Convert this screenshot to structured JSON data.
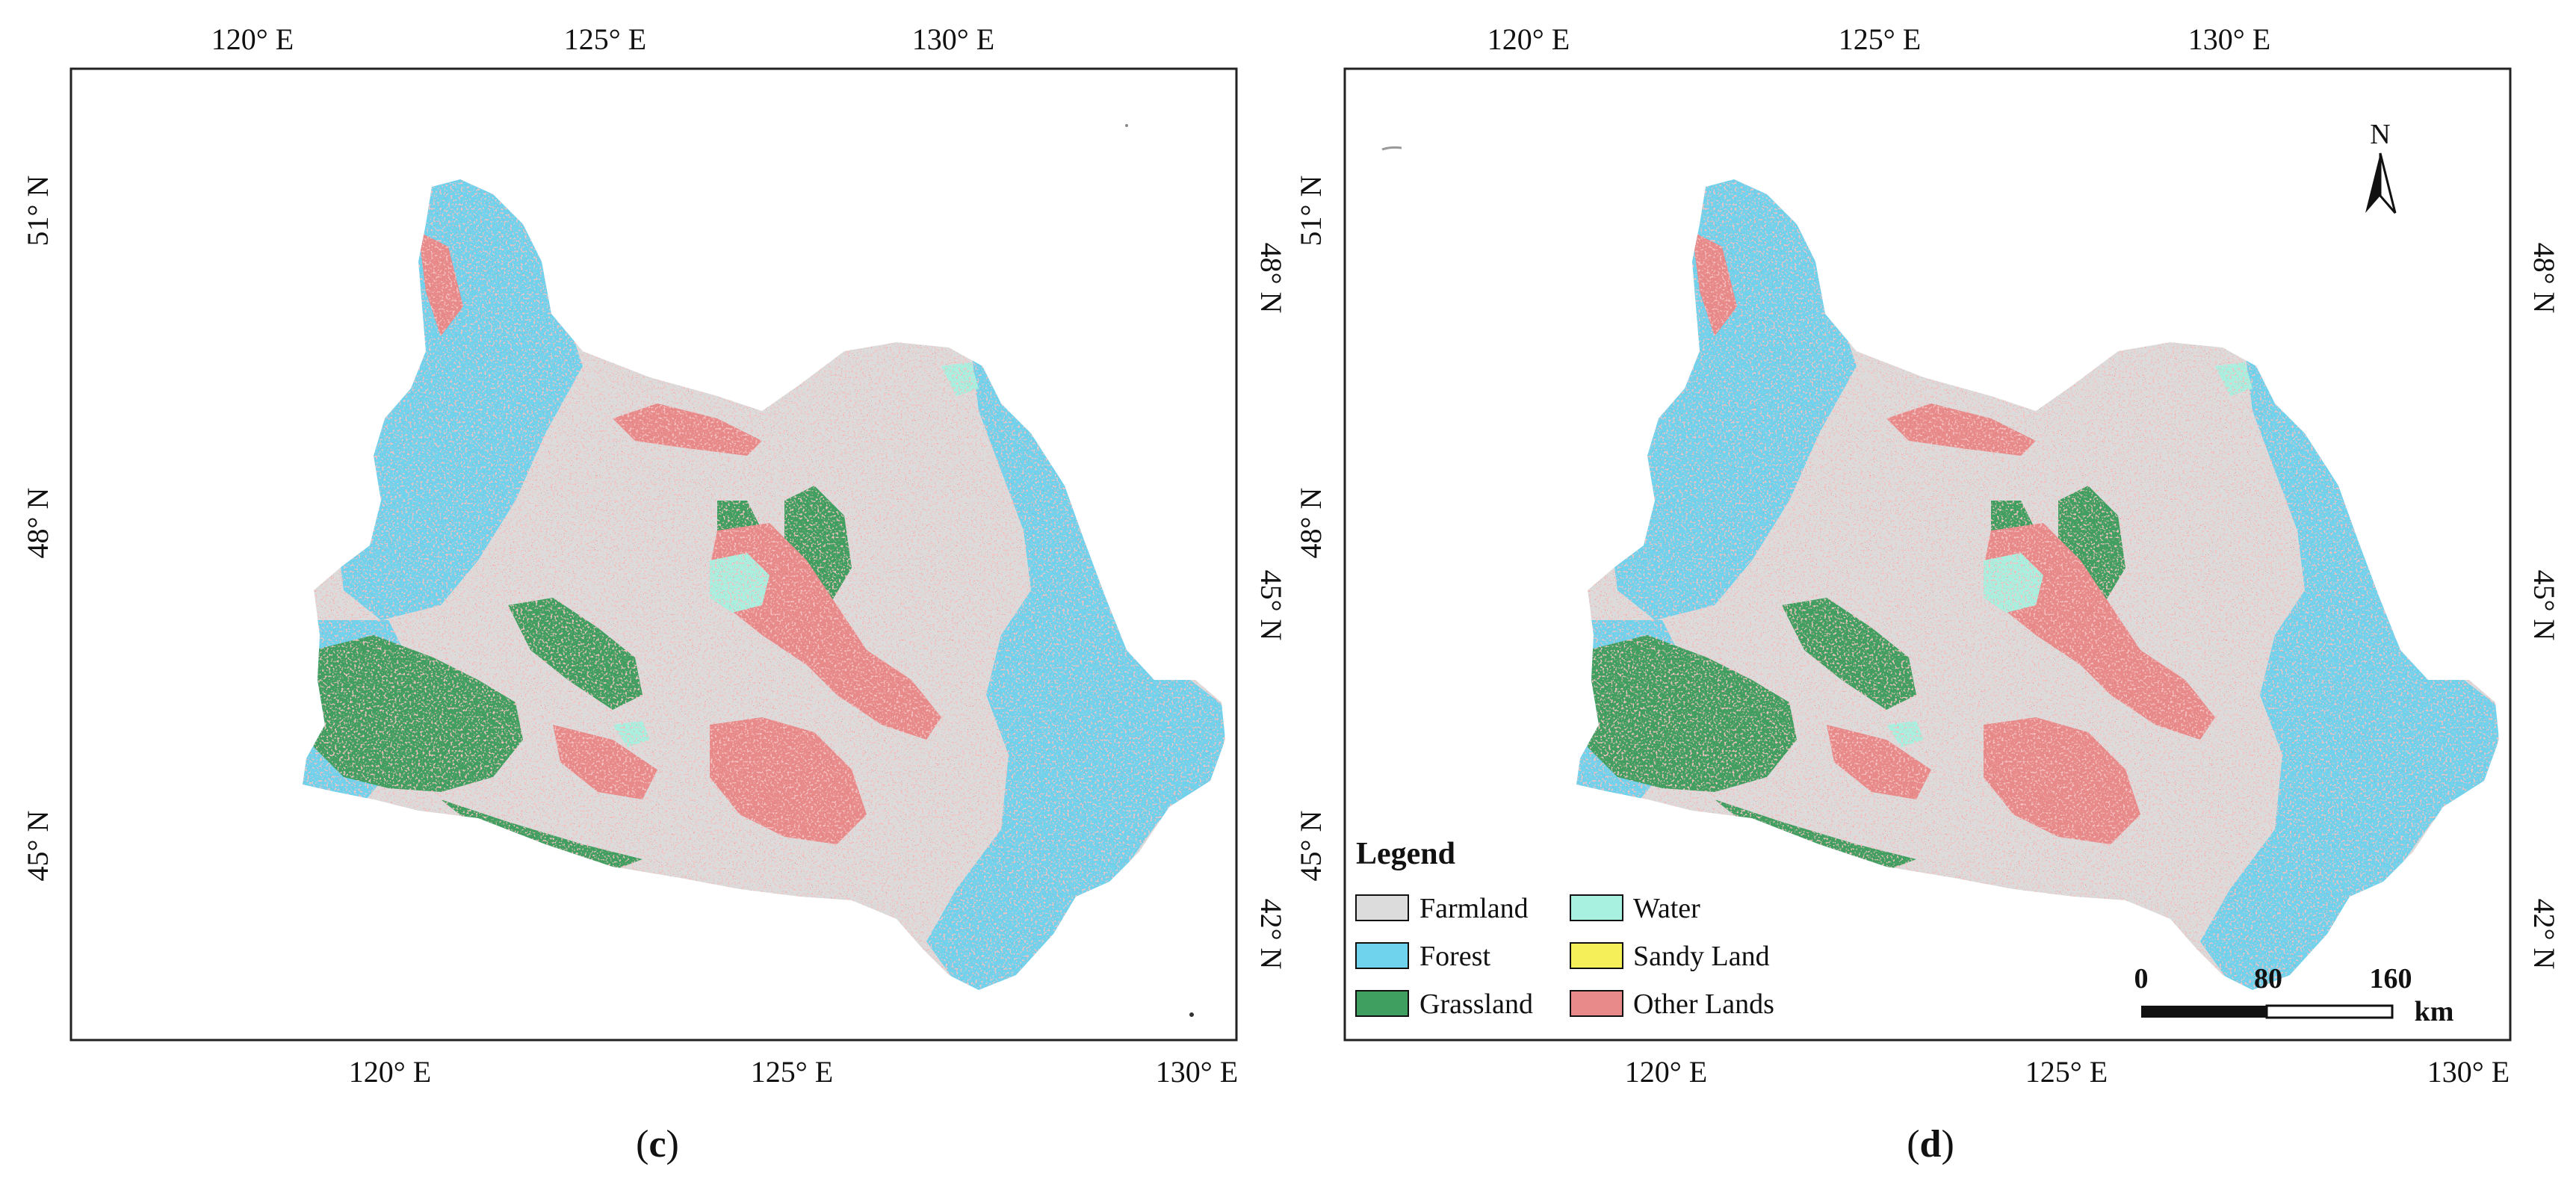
{
  "panels": [
    {
      "id": "c",
      "label_open": "(",
      "label_letter": "c",
      "label_close": ")",
      "top_ticks": [
        "120° E",
        "125° E",
        "130° E"
      ],
      "bottom_ticks": [
        "120° E",
        "125° E",
        "130° E"
      ],
      "left_ticks": [
        "51° N",
        "48° N",
        "45° N"
      ],
      "right_ticks": [
        "48° N",
        "45° N",
        "42° N"
      ]
    },
    {
      "id": "d",
      "label_open": "(",
      "label_letter": "d",
      "label_close": ")",
      "top_ticks": [
        "120° E",
        "125° E",
        "130° E"
      ],
      "bottom_ticks": [
        "120° E",
        "125° E",
        "130° E"
      ],
      "left_ticks": [
        "51° N",
        "48° N",
        "45° N"
      ],
      "right_ticks": [
        "48° N",
        "45° N",
        "42° N"
      ]
    }
  ],
  "legend": {
    "title": "Legend",
    "items": [
      {
        "label": "Farmland",
        "color": "#dcdcdc"
      },
      {
        "label": "Water",
        "color": "#a8f0e0"
      },
      {
        "label": "Forest",
        "color": "#6fd3ee"
      },
      {
        "label": "Sandy Land",
        "color": "#f5f05a"
      },
      {
        "label": "Grassland",
        "color": "#3f9f60"
      },
      {
        "label": "Other Lands",
        "color": "#e88a8a"
      }
    ]
  },
  "scale_bar": {
    "ticks": [
      "0",
      "80",
      "160"
    ],
    "unit": "km"
  },
  "north_arrow": {
    "label": "N"
  },
  "colors": {
    "farmland": "#dcdcdc",
    "forest": "#6fd3ee",
    "grassland": "#3f9f60",
    "water": "#a8f0e0",
    "other": "#e88a8a",
    "built_dots": "#8b1a1a"
  }
}
